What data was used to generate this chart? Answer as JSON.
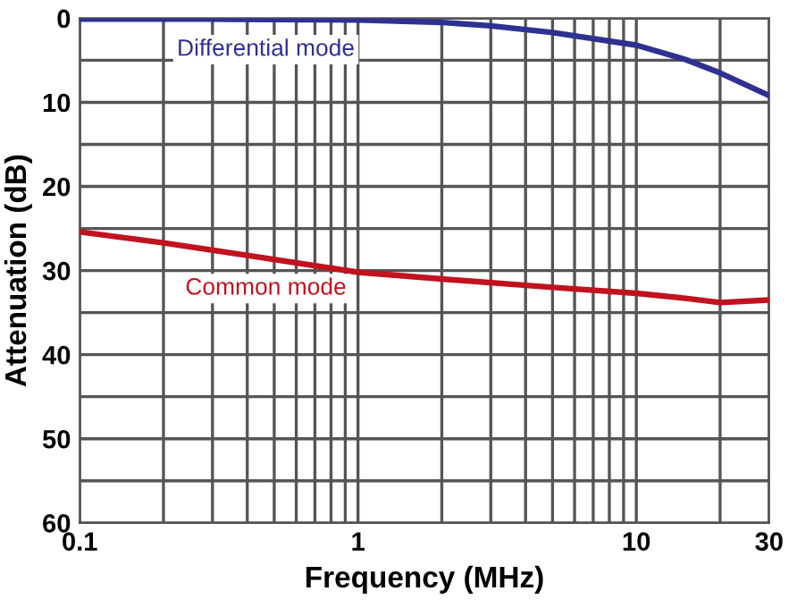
{
  "chart_data": {
    "type": "line",
    "xlabel": "Frequency (MHz)",
    "ylabel": "Attenuation (dB)",
    "log": "x",
    "grid": true,
    "legend": false,
    "line_style": "solid",
    "marker": "none",
    "xlim": [
      0.1,
      30
    ],
    "ylim": [
      60,
      0
    ],
    "xticks": [
      0.1,
      {
        "value": 0.2,
        "label": null
      },
      {
        "value": 0.3,
        "label": null
      },
      {
        "value": 0.4,
        "label": null
      },
      {
        "value": 0.5,
        "label": null
      },
      {
        "value": 0.6,
        "label": null
      },
      {
        "value": 0.7,
        "label": null
      },
      {
        "value": 0.8,
        "label": null
      },
      {
        "value": 0.9,
        "label": null
      },
      1,
      {
        "value": 2,
        "label": null
      },
      {
        "value": 3,
        "label": null
      },
      {
        "value": 4,
        "label": null
      },
      {
        "value": 5,
        "label": null
      },
      {
        "value": 6,
        "label": null
      },
      {
        "value": 7,
        "label": null
      },
      {
        "value": 8,
        "label": null
      },
      {
        "value": 9,
        "label": null
      },
      10,
      {
        "value": 20,
        "label": null
      },
      30
    ],
    "yticks": [
      0,
      {
        "value": 5,
        "label": null
      },
      10,
      {
        "value": 15,
        "label": null
      },
      20,
      {
        "value": 25,
        "label": null
      },
      30,
      {
        "value": 35,
        "label": null
      },
      40,
      {
        "value": 45,
        "label": null
      },
      50,
      {
        "value": 55,
        "label": null
      },
      60
    ],
    "series": [
      {
        "name": "Differential mode",
        "color": "#2e3192",
        "x": [
          0.1,
          0.3,
          1,
          2,
          3,
          5,
          10,
          15,
          20,
          30
        ],
        "values": [
          0.1,
          0.1,
          0.2,
          0.5,
          0.9,
          1.7,
          3.2,
          4.9,
          6.5,
          9.2
        ]
      },
      {
        "name": "Common mode",
        "color": "#c1121f",
        "x": [
          0.1,
          0.2,
          0.4,
          1,
          2,
          5,
          10,
          15,
          20,
          30
        ],
        "values": [
          25.4,
          26.7,
          28.2,
          30.2,
          31,
          32,
          32.7,
          33.3,
          33.8,
          33.5
        ]
      }
    ]
  }
}
